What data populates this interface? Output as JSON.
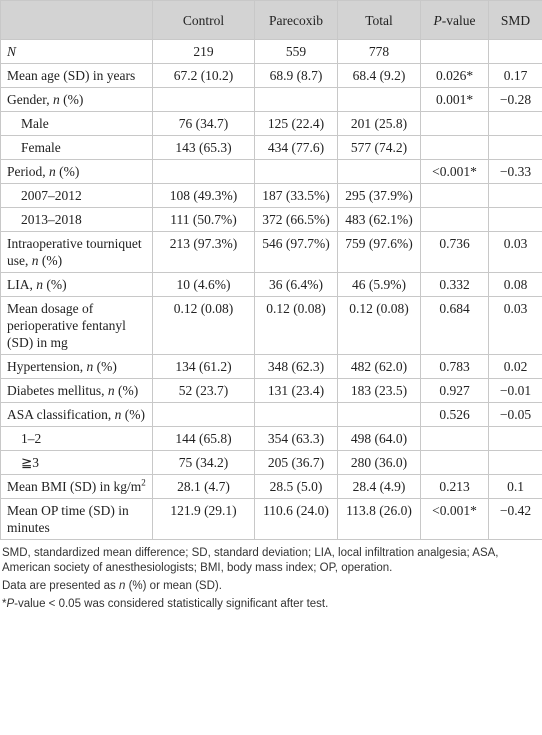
{
  "table": {
    "header": [
      "Control",
      "Parecoxib",
      "Total",
      [
        {
          "italic": "P"
        },
        "-value"
      ],
      "SMD"
    ],
    "rows": [
      [
        [
          {
            "italic": "N"
          }
        ],
        "219",
        "559",
        "778",
        null,
        null
      ],
      [
        "Mean age (SD) in years",
        "67.2 (10.2)",
        "68.9 (8.7)",
        "68.4 (9.2)",
        "0.026*",
        "0.17"
      ],
      [
        [
          "Gender, ",
          {
            "italic": "n"
          },
          " (%)"
        ],
        null,
        null,
        null,
        "0.001*",
        "−0.28"
      ],
      [
        "Male",
        "76 (34.7)",
        "125 (22.4)",
        "201 (25.8)",
        null,
        null
      ],
      [
        "Female",
        "143 (65.3)",
        "434 (77.6)",
        "577 (74.2)",
        null,
        null
      ],
      [
        [
          "Period, ",
          {
            "italic": "n"
          },
          " (%)"
        ],
        null,
        null,
        null,
        "<0.001*",
        "−0.33"
      ],
      [
        "2007–2012",
        "108 (49.3%)",
        "187 (33.5%)",
        "295 (37.9%)",
        null,
        null
      ],
      [
        "2013–2018",
        "111 (50.7%)",
        "372 (66.5%)",
        "483 (62.1%)",
        null,
        null
      ],
      [
        [
          "Intraoperative tourniquet use, ",
          {
            "italic": "n"
          },
          " (%)"
        ],
        "213 (97.3%)",
        "546 (97.7%)",
        "759 (97.6%)",
        "0.736",
        "0.03"
      ],
      [
        [
          "LIA, ",
          {
            "italic": "n"
          },
          " (%)"
        ],
        "10 (4.6%)",
        "36 (6.4%)",
        "46 (5.9%)",
        "0.332",
        "0.08"
      ],
      [
        "Mean dosage of perioperative fentanyl (SD) in mg",
        "0.12 (0.08)",
        "0.12 (0.08)",
        "0.12 (0.08)",
        "0.684",
        "0.03"
      ],
      [
        [
          "Hypertension, ",
          {
            "italic": "n"
          },
          " (%)"
        ],
        "134 (61.2)",
        "348 (62.3)",
        "482 (62.0)",
        "0.783",
        "0.02"
      ],
      [
        [
          "Diabetes mellitus, ",
          {
            "italic": "n"
          },
          " (%)"
        ],
        "52 (23.7)",
        "131 (23.4)",
        "183 (23.5)",
        "0.927",
        "−0.01"
      ],
      [
        [
          "ASA classification, ",
          {
            "italic": "n"
          },
          " (%)"
        ],
        null,
        null,
        null,
        "0.526",
        "−0.05"
      ],
      [
        "1–2",
        "144 (65.8)",
        "354 (63.3)",
        "498 (64.0)",
        null,
        null
      ],
      [
        "≧3",
        "75 (34.2)",
        "205 (36.7)",
        "280 (36.0)",
        null,
        null
      ],
      [
        [
          "Mean BMI (SD) in kg/m",
          {
            "sup": "2"
          }
        ],
        "28.1 (4.7)",
        "28.5 (5.0)",
        "28.4 (4.9)",
        "0.213",
        "0.1"
      ],
      [
        "Mean OP time (SD) in minutes",
        "121.9 (29.1)",
        "110.6 (24.0)",
        "113.8 (26.0)",
        "<0.001*",
        "−0.42"
      ]
    ]
  },
  "footnotes": [
    "SMD, standardized mean difference; SD, standard deviation; LIA, local infiltration analgesia; ASA, American society of anesthesiologists; BMI, body mass index; OP, operation.",
    [
      "Data are presented as ",
      {
        "italic": "n"
      },
      " (%) or mean (SD)."
    ],
    [
      "*",
      {
        "italic": "P"
      },
      "-value < 0.05 was considered statistically significant after test."
    ]
  ]
}
